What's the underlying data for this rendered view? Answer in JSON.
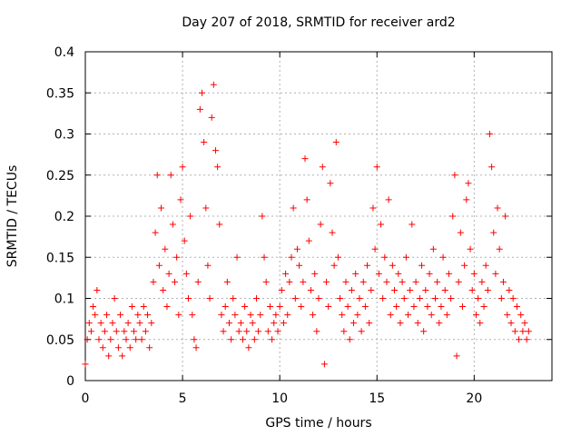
{
  "chart_data": {
    "type": "scatter",
    "title": "Day 207 of 2018, SRMTID for receiver ard2",
    "xlabel": "GPS time / hours",
    "ylabel": "SRMTID / TECUs",
    "xlim": [
      0,
      24
    ],
    "ylim": [
      0,
      0.4
    ],
    "x_ticks": [
      0,
      5,
      10,
      15,
      20
    ],
    "x_tick_labels": [
      "0",
      "5",
      "10",
      "15",
      "20"
    ],
    "y_ticks": [
      0,
      0.05,
      0.1,
      0.15,
      0.2,
      0.25,
      0.3,
      0.35,
      0.4
    ],
    "y_tick_labels": [
      "0",
      "0.05",
      "0.1",
      "0.15",
      "0.2",
      "0.25",
      "0.3",
      "0.35",
      "0.4"
    ],
    "grid": true,
    "marker": "plus",
    "color": "#ff0000",
    "series": [
      {
        "name": "ard2",
        "points": [
          [
            0.0,
            0.02
          ],
          [
            0.1,
            0.05
          ],
          [
            0.2,
            0.07
          ],
          [
            0.3,
            0.06
          ],
          [
            0.4,
            0.09
          ],
          [
            0.5,
            0.08
          ],
          [
            0.6,
            0.11
          ],
          [
            0.7,
            0.05
          ],
          [
            0.8,
            0.07
          ],
          [
            0.9,
            0.04
          ],
          [
            1.0,
            0.06
          ],
          [
            1.1,
            0.08
          ],
          [
            1.2,
            0.03
          ],
          [
            1.3,
            0.05
          ],
          [
            1.4,
            0.07
          ],
          [
            1.5,
            0.1
          ],
          [
            1.6,
            0.06
          ],
          [
            1.7,
            0.04
          ],
          [
            1.8,
            0.08
          ],
          [
            1.9,
            0.03
          ],
          [
            2.0,
            0.06
          ],
          [
            2.1,
            0.05
          ],
          [
            2.2,
            0.07
          ],
          [
            2.3,
            0.04
          ],
          [
            2.4,
            0.09
          ],
          [
            2.5,
            0.06
          ],
          [
            2.6,
            0.05
          ],
          [
            2.7,
            0.08
          ],
          [
            2.8,
            0.07
          ],
          [
            2.9,
            0.05
          ],
          [
            3.0,
            0.09
          ],
          [
            3.1,
            0.06
          ],
          [
            3.2,
            0.08
          ],
          [
            3.3,
            0.04
          ],
          [
            3.4,
            0.07
          ],
          [
            3.5,
            0.12
          ],
          [
            3.6,
            0.18
          ],
          [
            3.7,
            0.25
          ],
          [
            3.8,
            0.14
          ],
          [
            3.9,
            0.21
          ],
          [
            4.0,
            0.11
          ],
          [
            4.1,
            0.16
          ],
          [
            4.2,
            0.09
          ],
          [
            4.3,
            0.13
          ],
          [
            4.4,
            0.25
          ],
          [
            4.5,
            0.19
          ],
          [
            4.6,
            0.12
          ],
          [
            4.7,
            0.15
          ],
          [
            4.8,
            0.08
          ],
          [
            4.9,
            0.22
          ],
          [
            5.0,
            0.26
          ],
          [
            5.1,
            0.17
          ],
          [
            5.2,
            0.13
          ],
          [
            5.3,
            0.1
          ],
          [
            5.4,
            0.2
          ],
          [
            5.5,
            0.08
          ],
          [
            5.6,
            0.05
          ],
          [
            5.7,
            0.04
          ],
          [
            5.8,
            0.12
          ],
          [
            5.9,
            0.33
          ],
          [
            6.0,
            0.35
          ],
          [
            6.1,
            0.29
          ],
          [
            6.2,
            0.21
          ],
          [
            6.3,
            0.14
          ],
          [
            6.4,
            0.1
          ],
          [
            6.5,
            0.32
          ],
          [
            6.6,
            0.36
          ],
          [
            6.7,
            0.28
          ],
          [
            6.8,
            0.26
          ],
          [
            6.9,
            0.19
          ],
          [
            7.0,
            0.08
          ],
          [
            7.1,
            0.06
          ],
          [
            7.2,
            0.09
          ],
          [
            7.3,
            0.12
          ],
          [
            7.4,
            0.07
          ],
          [
            7.5,
            0.05
          ],
          [
            7.6,
            0.1
          ],
          [
            7.7,
            0.08
          ],
          [
            7.8,
            0.15
          ],
          [
            7.9,
            0.06
          ],
          [
            8.0,
            0.07
          ],
          [
            8.1,
            0.05
          ],
          [
            8.2,
            0.09
          ],
          [
            8.3,
            0.06
          ],
          [
            8.4,
            0.04
          ],
          [
            8.5,
            0.08
          ],
          [
            8.6,
            0.07
          ],
          [
            8.7,
            0.05
          ],
          [
            8.8,
            0.1
          ],
          [
            8.9,
            0.06
          ],
          [
            9.0,
            0.08
          ],
          [
            9.1,
            0.2
          ],
          [
            9.2,
            0.15
          ],
          [
            9.3,
            0.12
          ],
          [
            9.4,
            0.06
          ],
          [
            9.5,
            0.09
          ],
          [
            9.6,
            0.05
          ],
          [
            9.7,
            0.07
          ],
          [
            9.8,
            0.08
          ],
          [
            9.9,
            0.06
          ],
          [
            10.0,
            0.09
          ],
          [
            10.1,
            0.11
          ],
          [
            10.2,
            0.07
          ],
          [
            10.3,
            0.13
          ],
          [
            10.4,
            0.08
          ],
          [
            10.5,
            0.12
          ],
          [
            10.6,
            0.15
          ],
          [
            10.7,
            0.21
          ],
          [
            10.8,
            0.1
          ],
          [
            10.9,
            0.16
          ],
          [
            11.0,
            0.14
          ],
          [
            11.1,
            0.09
          ],
          [
            11.2,
            0.12
          ],
          [
            11.3,
            0.27
          ],
          [
            11.4,
            0.22
          ],
          [
            11.5,
            0.17
          ],
          [
            11.6,
            0.11
          ],
          [
            11.7,
            0.08
          ],
          [
            11.8,
            0.13
          ],
          [
            11.9,
            0.06
          ],
          [
            12.0,
            0.1
          ],
          [
            12.1,
            0.19
          ],
          [
            12.2,
            0.26
          ],
          [
            12.3,
            0.02
          ],
          [
            12.4,
            0.12
          ],
          [
            12.5,
            0.09
          ],
          [
            12.6,
            0.24
          ],
          [
            12.7,
            0.18
          ],
          [
            12.8,
            0.14
          ],
          [
            12.9,
            0.29
          ],
          [
            13.0,
            0.15
          ],
          [
            13.1,
            0.1
          ],
          [
            13.2,
            0.08
          ],
          [
            13.3,
            0.06
          ],
          [
            13.4,
            0.12
          ],
          [
            13.5,
            0.09
          ],
          [
            13.6,
            0.05
          ],
          [
            13.7,
            0.11
          ],
          [
            13.8,
            0.07
          ],
          [
            13.9,
            0.13
          ],
          [
            14.0,
            0.08
          ],
          [
            14.1,
            0.1
          ],
          [
            14.2,
            0.06
          ],
          [
            14.3,
            0.12
          ],
          [
            14.4,
            0.09
          ],
          [
            14.5,
            0.14
          ],
          [
            14.6,
            0.07
          ],
          [
            14.7,
            0.11
          ],
          [
            14.8,
            0.21
          ],
          [
            14.9,
            0.16
          ],
          [
            15.0,
            0.26
          ],
          [
            15.1,
            0.13
          ],
          [
            15.2,
            0.19
          ],
          [
            15.3,
            0.1
          ],
          [
            15.4,
            0.15
          ],
          [
            15.5,
            0.12
          ],
          [
            15.6,
            0.22
          ],
          [
            15.7,
            0.08
          ],
          [
            15.8,
            0.14
          ],
          [
            15.9,
            0.11
          ],
          [
            16.0,
            0.09
          ],
          [
            16.1,
            0.13
          ],
          [
            16.2,
            0.07
          ],
          [
            16.3,
            0.12
          ],
          [
            16.4,
            0.1
          ],
          [
            16.5,
            0.15
          ],
          [
            16.6,
            0.08
          ],
          [
            16.7,
            0.11
          ],
          [
            16.8,
            0.19
          ],
          [
            16.9,
            0.09
          ],
          [
            17.0,
            0.12
          ],
          [
            17.1,
            0.07
          ],
          [
            17.2,
            0.1
          ],
          [
            17.3,
            0.14
          ],
          [
            17.4,
            0.06
          ],
          [
            17.5,
            0.11
          ],
          [
            17.6,
            0.09
          ],
          [
            17.7,
            0.13
          ],
          [
            17.8,
            0.08
          ],
          [
            17.9,
            0.16
          ],
          [
            18.0,
            0.1
          ],
          [
            18.1,
            0.12
          ],
          [
            18.2,
            0.07
          ],
          [
            18.3,
            0.09
          ],
          [
            18.4,
            0.15
          ],
          [
            18.5,
            0.11
          ],
          [
            18.6,
            0.08
          ],
          [
            18.7,
            0.13
          ],
          [
            18.8,
            0.1
          ],
          [
            18.9,
            0.2
          ],
          [
            19.0,
            0.25
          ],
          [
            19.1,
            0.03
          ],
          [
            19.2,
            0.12
          ],
          [
            19.3,
            0.18
          ],
          [
            19.4,
            0.09
          ],
          [
            19.5,
            0.14
          ],
          [
            19.6,
            0.22
          ],
          [
            19.7,
            0.24
          ],
          [
            19.8,
            0.16
          ],
          [
            19.9,
            0.11
          ],
          [
            20.0,
            0.13
          ],
          [
            20.1,
            0.08
          ],
          [
            20.2,
            0.1
          ],
          [
            20.3,
            0.07
          ],
          [
            20.4,
            0.12
          ],
          [
            20.5,
            0.09
          ],
          [
            20.6,
            0.14
          ],
          [
            20.7,
            0.11
          ],
          [
            20.8,
            0.3
          ],
          [
            20.9,
            0.26
          ],
          [
            21.0,
            0.18
          ],
          [
            21.1,
            0.13
          ],
          [
            21.2,
            0.21
          ],
          [
            21.3,
            0.16
          ],
          [
            21.4,
            0.1
          ],
          [
            21.5,
            0.12
          ],
          [
            21.6,
            0.2
          ],
          [
            21.7,
            0.08
          ],
          [
            21.8,
            0.11
          ],
          [
            21.9,
            0.07
          ],
          [
            22.0,
            0.1
          ],
          [
            22.1,
            0.06
          ],
          [
            22.2,
            0.09
          ],
          [
            22.3,
            0.05
          ],
          [
            22.4,
            0.08
          ],
          [
            22.5,
            0.06
          ],
          [
            22.6,
            0.07
          ],
          [
            22.7,
            0.05
          ],
          [
            22.8,
            0.06
          ]
        ]
      }
    ]
  }
}
